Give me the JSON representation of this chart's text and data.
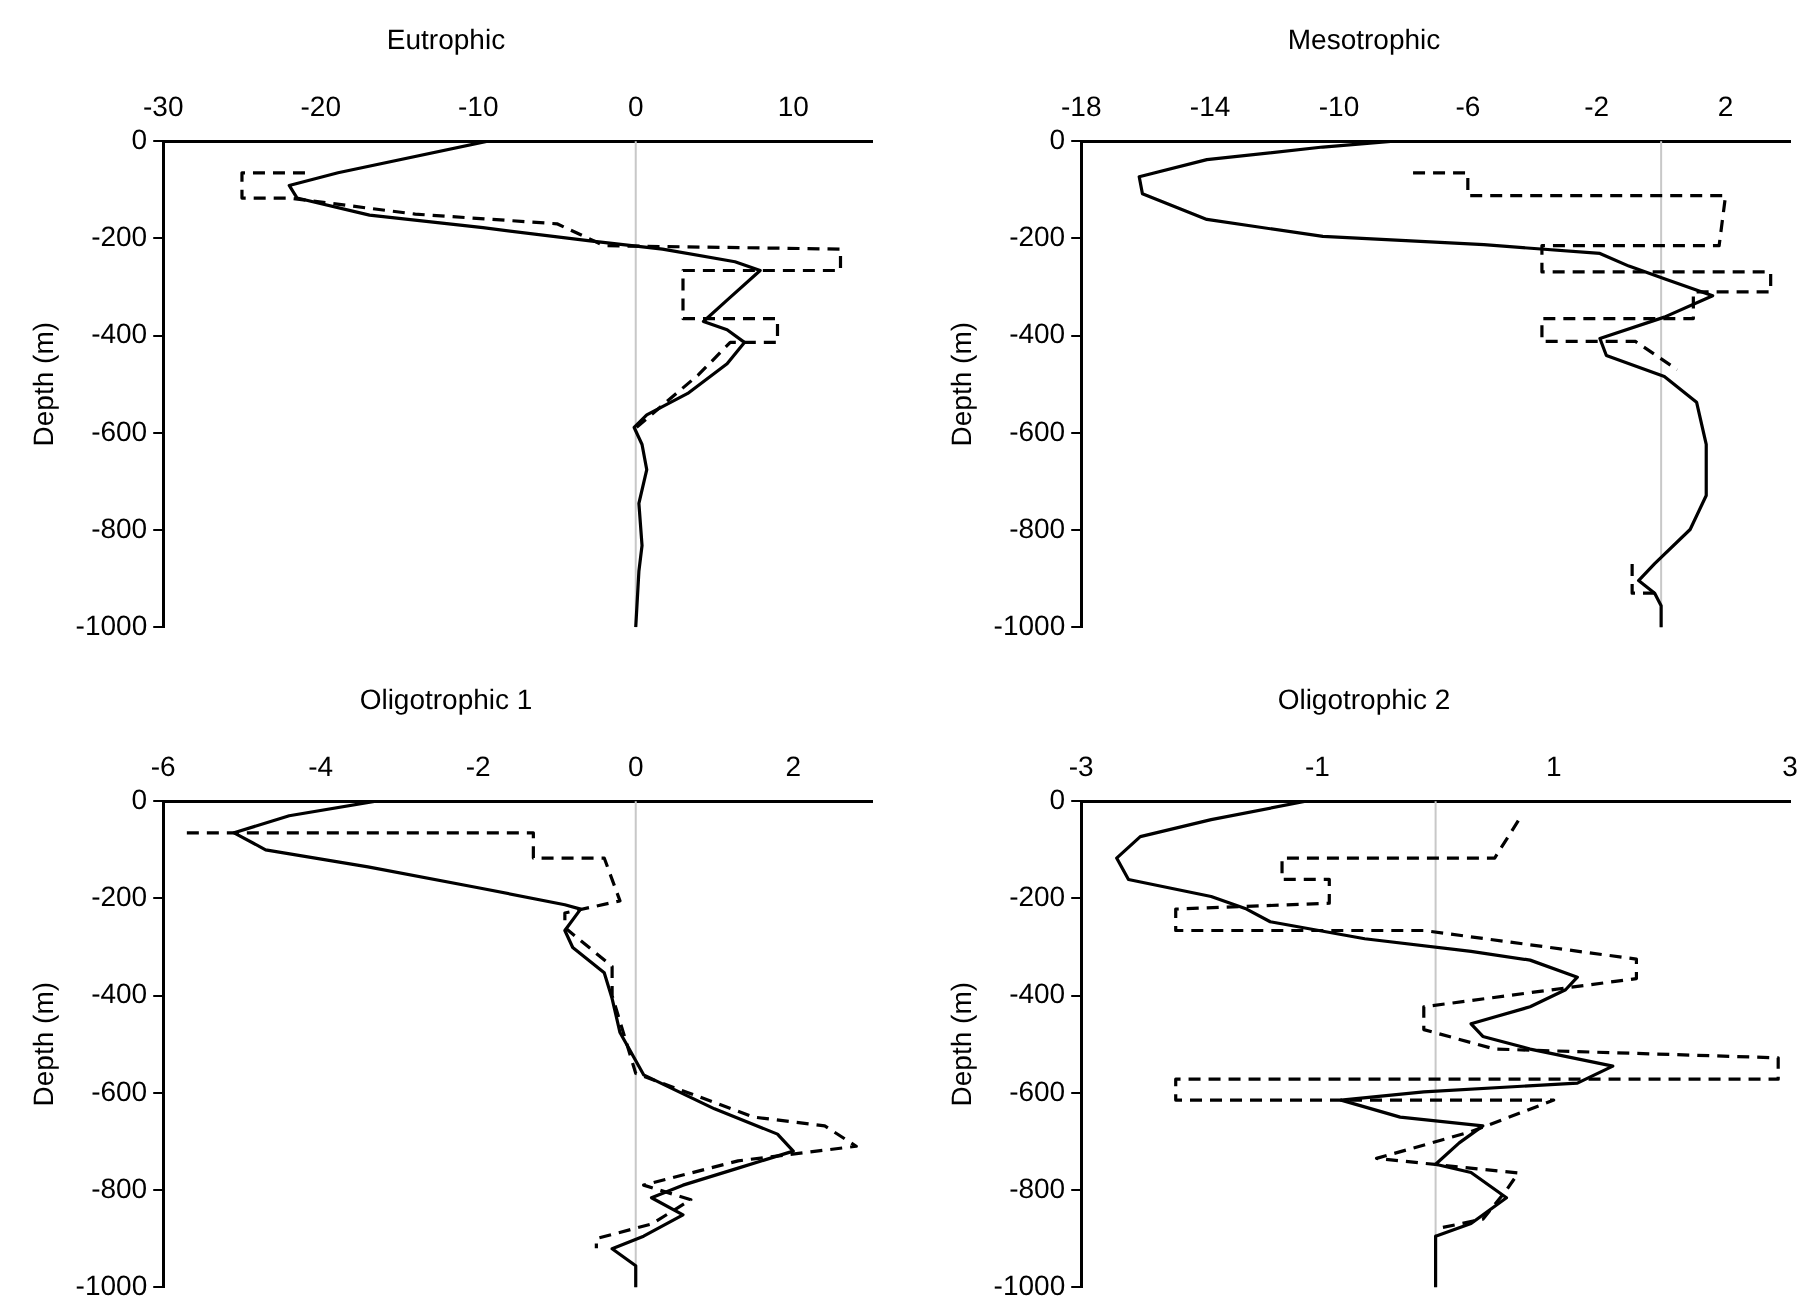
{
  "chart_data": [
    {
      "type": "line",
      "title": "Eutrophic",
      "ylabel": "Depth (m)",
      "xlim": [
        -30,
        15
      ],
      "xticks": [
        -30,
        -20,
        -10,
        0,
        10
      ],
      "ylim": [
        -1000,
        0
      ],
      "yticks": [
        0,
        -200,
        -400,
        -600,
        -800,
        -1000
      ],
      "grid": false,
      "legend": false,
      "marker": "none",
      "ref_lines": [
        {
          "axis": "x",
          "value": 0,
          "color": "#c8c8c8"
        }
      ],
      "series": [
        {
          "color": "#000000",
          "line_style": "solid",
          "x": [
            -9.4,
            -18.9,
            -22,
            -21.5,
            -16.9,
            -9.7,
            -2.9,
            1.7,
            6.3,
            7.9,
            5.8,
            4.3,
            5.8,
            6.9,
            5.8,
            3.3,
            0.7,
            -0.1,
            0.4,
            0.7,
            0.2,
            0.4,
            0.2,
            0
          ],
          "values": [
            0,
            -65,
            -91,
            -117,
            -152,
            -178,
            -205,
            -222,
            -248,
            -266,
            -327,
            -371,
            -388,
            -414,
            -458,
            -519,
            -563,
            -589,
            -624,
            -676,
            -745,
            -832,
            -885,
            -1000
          ]
        },
        {
          "color": "#000000",
          "line_style": "dashed",
          "x": [
            -21,
            -25,
            -25,
            -22,
            -14,
            -5,
            -2,
            13,
            13,
            3,
            3,
            9,
            9,
            6,
            4,
            0
          ],
          "values": [
            -65,
            -65,
            -117,
            -117,
            -150,
            -170,
            -215,
            -222,
            -266,
            -266,
            -365,
            -365,
            -414,
            -414,
            -480,
            -590
          ]
        }
      ]
    },
    {
      "type": "line",
      "title": "Mesotrophic",
      "ylabel": "Depth (m)",
      "xlim": [
        -18,
        4
      ],
      "xticks": [
        -18,
        -14,
        -10,
        -6,
        -2,
        2
      ],
      "ylim": [
        -1000,
        0
      ],
      "yticks": [
        0,
        -200,
        -400,
        -600,
        -800,
        -1000
      ],
      "grid": false,
      "legend": false,
      "marker": "none",
      "ref_lines": [
        {
          "axis": "x",
          "value": 0,
          "color": "#c8c8c8"
        }
      ],
      "series": [
        {
          "color": "#000000",
          "line_style": "solid",
          "x": [
            -8.3,
            -10.5,
            -14.1,
            -16.2,
            -16.1,
            -14.1,
            -10.5,
            -5.5,
            -1.9,
            -1.0,
            0.1,
            1.6,
            0.1,
            -1.9,
            -1.7,
            0.1,
            1.1,
            1.4,
            1.4,
            0.9,
            -0.2,
            -0.7,
            -0.2,
            0,
            0
          ],
          "values": [
            0,
            -12,
            -38,
            -73,
            -108,
            -161,
            -196,
            -213,
            -231,
            -257,
            -283,
            -318,
            -362,
            -406,
            -441,
            -484,
            -537,
            -624,
            -729,
            -799,
            -869,
            -904,
            -930,
            -956,
            -1000
          ]
        },
        {
          "color": "#000000",
          "line_style": "dashed",
          "x": [
            -7.7,
            -6,
            -6,
            2,
            1.8,
            -3.7,
            -3.7,
            3.4,
            3.4,
            1,
            1,
            -3.7,
            -3.7,
            -0.8,
            0.5,
            null,
            -0.9,
            -0.9,
            0
          ],
          "values": [
            -65,
            -65,
            -112,
            -112,
            -215,
            -215,
            -269,
            -269,
            -310,
            -310,
            -365,
            -365,
            -412,
            -412,
            -470,
            null,
            -870,
            -930,
            -930
          ]
        }
      ]
    },
    {
      "type": "line",
      "title": "Oligotrophic 1",
      "ylabel": "Depth (m)",
      "xlim": [
        -6,
        3
      ],
      "xticks": [
        -6,
        -4,
        -2,
        0,
        2
      ],
      "ylim": [
        -1000,
        0
      ],
      "yticks": [
        0,
        -200,
        -400,
        -600,
        -800,
        -1000
      ],
      "grid": false,
      "legend": false,
      "marker": "none",
      "ref_lines": [
        {
          "axis": "x",
          "value": 0,
          "color": "#c8c8c8"
        }
      ],
      "series": [
        {
          "color": "#000000",
          "line_style": "solid",
          "x": [
            -3.3,
            -4.4,
            -5.1,
            -4.7,
            -3.4,
            -2.0,
            -0.9,
            -0.7,
            -0.9,
            -0.8,
            -0.4,
            -0.3,
            -0.2,
            0.1,
            1.0,
            1.8,
            2.0,
            1.3,
            0.6,
            0.2,
            0.6,
            0.1,
            -0.3,
            0,
            0
          ],
          "values": [
            0,
            -30,
            -65,
            -100,
            -135,
            -178,
            -213,
            -222,
            -266,
            -301,
            -353,
            -406,
            -476,
            -563,
            -633,
            -685,
            -720,
            -755,
            -790,
            -816,
            -851,
            -895,
            -921,
            -956,
            -1000
          ]
        },
        {
          "color": "#000000",
          "line_style": "dashed",
          "x": [
            -5.7,
            -1.3,
            -1.3,
            -0.4,
            -0.2,
            -0.9,
            -0.9,
            -0.3,
            -0.3,
            0,
            1.5,
            2.4,
            2.8,
            1.3,
            0.1,
            0.7,
            0.2,
            -0.5,
            -0.5
          ],
          "values": [
            -65,
            -65,
            -117,
            -117,
            -205,
            -230,
            -260,
            -340,
            -400,
            -560,
            -650,
            -668,
            -710,
            -740,
            -790,
            -820,
            -870,
            -900,
            -920
          ]
        }
      ]
    },
    {
      "type": "line",
      "title": "Oligotrophic 2",
      "ylabel": "Depth (m)",
      "xlim": [
        -3,
        3
      ],
      "xticks": [
        -3,
        -1,
        1,
        3
      ],
      "ylim": [
        -1000,
        0
      ],
      "yticks": [
        0,
        -200,
        -400,
        -600,
        -800,
        -1000
      ],
      "grid": false,
      "legend": false,
      "marker": "none",
      "ref_lines": [
        {
          "axis": "x",
          "value": 0,
          "color": "#c8c8c8"
        }
      ],
      "series": [
        {
          "color": "#000000",
          "line_style": "solid",
          "x": [
            -1.1,
            -1.9,
            -2.5,
            -2.7,
            -2.6,
            -1.9,
            -1.6,
            -1.4,
            -0.6,
            0.3,
            0.8,
            1.2,
            1.1,
            0.8,
            0.3,
            0.4,
            0.8,
            1.5,
            1.2,
            -0.1,
            -0.8,
            -0.3,
            0.4,
            0.2,
            0,
            0.3,
            0.6,
            0.3,
            0,
            0
          ],
          "values": [
            0,
            -38,
            -73,
            -117,
            -161,
            -196,
            -222,
            -248,
            -283,
            -309,
            -327,
            -362,
            -388,
            -423,
            -458,
            -484,
            -510,
            -545,
            -580,
            -598,
            -615,
            -650,
            -668,
            -703,
            -747,
            -764,
            -816,
            -869,
            -895,
            -1000
          ]
        },
        {
          "color": "#000000",
          "line_style": "dashed",
          "x": [
            0.7,
            0.5,
            -1.3,
            -1.3,
            -0.9,
            -0.9,
            -2.2,
            -2.2,
            -0.1,
            1.7,
            1.7,
            -0.1,
            -0.1,
            0.5,
            2.9,
            2.9,
            -2.2,
            -2.2,
            1.0,
            0.3,
            -0.5,
            0.7,
            0.6,
            0.4,
            0
          ],
          "values": [
            -40,
            -117,
            -117,
            -161,
            -161,
            -210,
            -222,
            -266,
            -266,
            -325,
            -365,
            -423,
            -470,
            -510,
            -528,
            -572,
            -572,
            -615,
            -615,
            -680,
            -735,
            -765,
            -800,
            -860,
            -880
          ]
        }
      ]
    }
  ]
}
